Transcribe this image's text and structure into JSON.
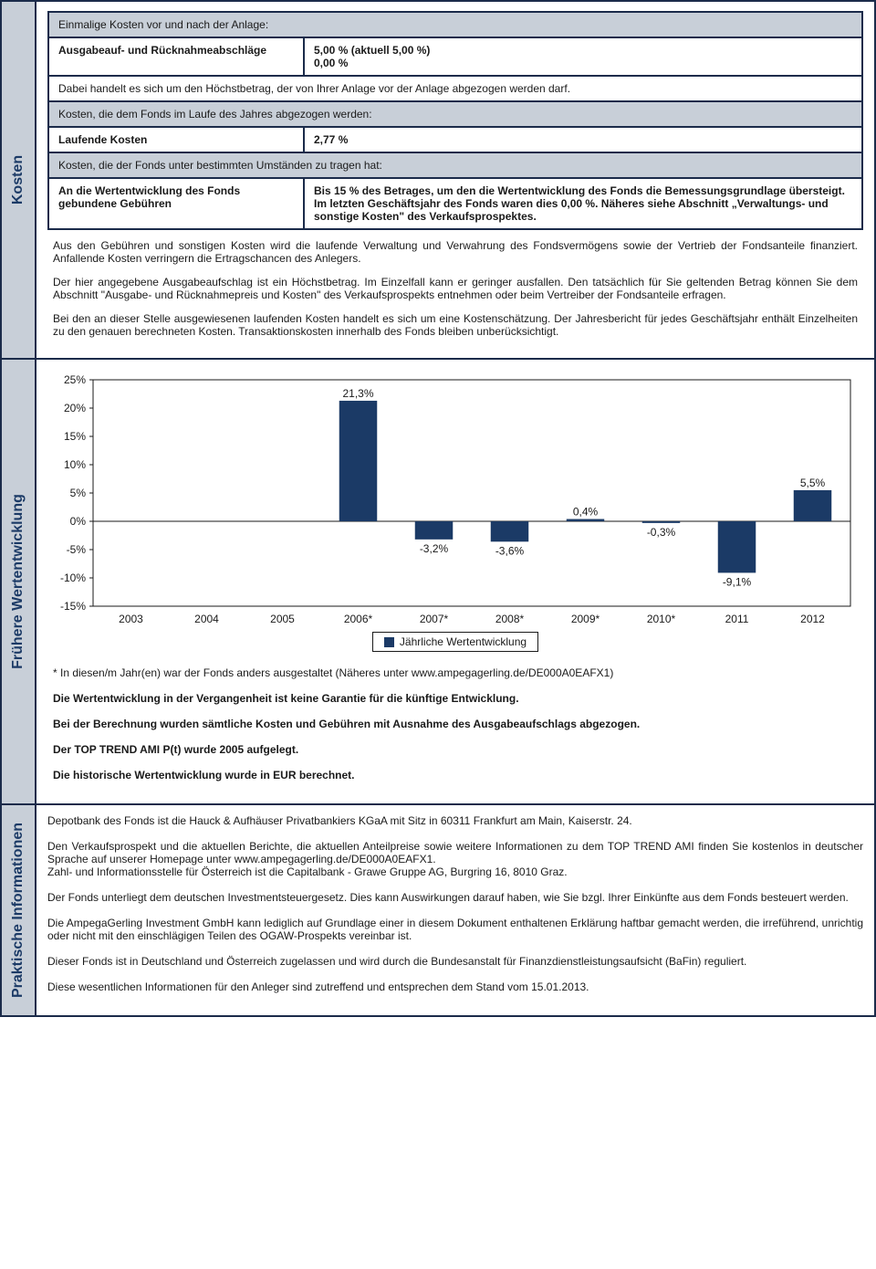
{
  "sections": {
    "kosten": {
      "label": "Kosten",
      "row1_header": "Einmalige Kosten vor und nach der Anlage:",
      "row1_left": "Ausgabeauf- und Rücknahmeabschläge",
      "row1_right_l1": "5,00 % (aktuell 5,00 %)",
      "row1_right_l2": "0,00 %",
      "row1_note": "Dabei handelt es sich um den Höchstbetrag, der von Ihrer Anlage vor der Anlage abgezogen werden darf.",
      "row2_header": "Kosten, die dem Fonds im Laufe des Jahres abgezogen werden:",
      "row2_left": "Laufende Kosten",
      "row2_right": "2,77 %",
      "row3_header": "Kosten, die der Fonds unter bestimmten Umständen zu tragen hat:",
      "row3_left": "An die Wertentwicklung des Fonds gebundene Gebühren",
      "row3_right": "Bis 15 % des Betrages, um den die Wertentwicklung des Fonds die Bemessungsgrundlage übersteigt. Im letzten Geschäftsjahr des Fonds waren dies 0,00 %. Näheres siehe Abschnitt „Verwaltungs- und sonstige Kosten\" des Verkaufsprospektes.",
      "p1": "Aus den Gebühren und sonstigen Kosten wird die laufende Verwaltung und Verwahrung des Fondsvermögens sowie der Vertrieb der Fondsanteile finanziert. Anfallende Kosten verringern die Ertragschancen des Anlegers.",
      "p2": "Der hier angegebene Ausgabeaufschlag ist ein Höchstbetrag. Im Einzelfall kann er geringer ausfallen. Den tatsächlich für Sie geltenden Betrag können Sie dem Abschnitt \"Ausgabe- und Rücknahmepreis und Kosten\" des Verkaufsprospekts entnehmen oder beim Vertreiber der Fondsanteile erfragen.",
      "p3": "Bei den an dieser Stelle ausgewiesenen laufenden Kosten handelt es sich um eine Kostenschätzung. Der Jahresbericht für jedes Geschäftsjahr enthält Einzelheiten zu den genauen berechneten Kosten. Transaktionskosten innerhalb des Fonds bleiben unberücksichtigt."
    },
    "perf": {
      "label": "Frühere Wertentwicklung",
      "chart": {
        "type": "bar",
        "categories": [
          "2003",
          "2004",
          "2005",
          "2006*",
          "2007*",
          "2008*",
          "2009*",
          "2010*",
          "2011",
          "2012"
        ],
        "values": [
          null,
          null,
          null,
          21.3,
          -3.2,
          -3.6,
          0.4,
          -0.3,
          -9.1,
          5.5
        ],
        "value_labels": [
          "",
          "",
          "",
          "21,3%",
          "-3,2%",
          "-3,6%",
          "0,4%",
          "-0,3%",
          "-9,1%",
          "5,5%"
        ],
        "bar_color": "#1b3a66",
        "ylim": [
          -15,
          25
        ],
        "ytick_step": 5,
        "ytick_labels": [
          "-15%",
          "-10%",
          "-5%",
          "0%",
          "5%",
          "10%",
          "15%",
          "20%",
          "25%"
        ],
        "axis_color": "#1a1a1a",
        "grid_color": "#ffffff",
        "label_fontsize": 12,
        "tick_fontsize": 12,
        "bar_width": 0.5,
        "background_color": "#ffffff",
        "plot_border_color": "#1a1a1a",
        "legend_label": "Jährliche Wertentwicklung"
      },
      "note_star": "* In diesen/m Jahr(en) war der Fonds anders ausgestaltet (Näheres unter www.ampegagerling.de/DE000A0EAFX1)",
      "note1": "Die Wertentwicklung in der Vergangenheit ist keine Garantie für die künftige Entwicklung.",
      "note2": "Bei der Berechnung wurden sämtliche Kosten und Gebühren mit Ausnahme des Ausgabeaufschlags abgezogen.",
      "note3": "Der TOP TREND AMI P(t) wurde 2005 aufgelegt.",
      "note4": "Die historische Wertentwicklung wurde in EUR berechnet."
    },
    "info": {
      "label": "Praktische Informationen",
      "p1": "Depotbank des Fonds ist die Hauck & Aufhäuser Privatbankiers KGaA mit Sitz in 60311 Frankfurt am Main, Kaiserstr. 24.",
      "p2": "Den Verkaufsprospekt und die aktuellen Berichte, die aktuellen Anteilpreise sowie weitere Informationen zu dem TOP TREND AMI finden Sie kostenlos in deutscher Sprache auf unserer Homepage unter www.ampegagerling.de/DE000A0EAFX1.\nZahl- und Informationsstelle für Österreich ist die Capitalbank - Grawe Gruppe AG, Burgring 16, 8010 Graz.",
      "p3": "Der Fonds unterliegt dem deutschen Investmentsteuergesetz. Dies kann Auswirkungen darauf haben, wie Sie bzgl. Ihrer Einkünfte aus dem Fonds besteuert werden.",
      "p4": "Die AmpegaGerling Investment GmbH kann lediglich auf Grundlage einer in diesem Dokument enthaltenen Erklärung haftbar gemacht werden, die irreführend, unrichtig oder nicht mit den einschlägigen Teilen des OGAW-Prospekts vereinbar ist.",
      "p5": "Dieser Fonds ist in Deutschland und Österreich zugelassen und wird durch die Bundesanstalt für Finanzdienstleistungsaufsicht (BaFin) reguliert.",
      "p6": "Diese wesentlichen Informationen für den Anleger sind zutreffend und entsprechen dem Stand vom 15.01.2013."
    }
  }
}
